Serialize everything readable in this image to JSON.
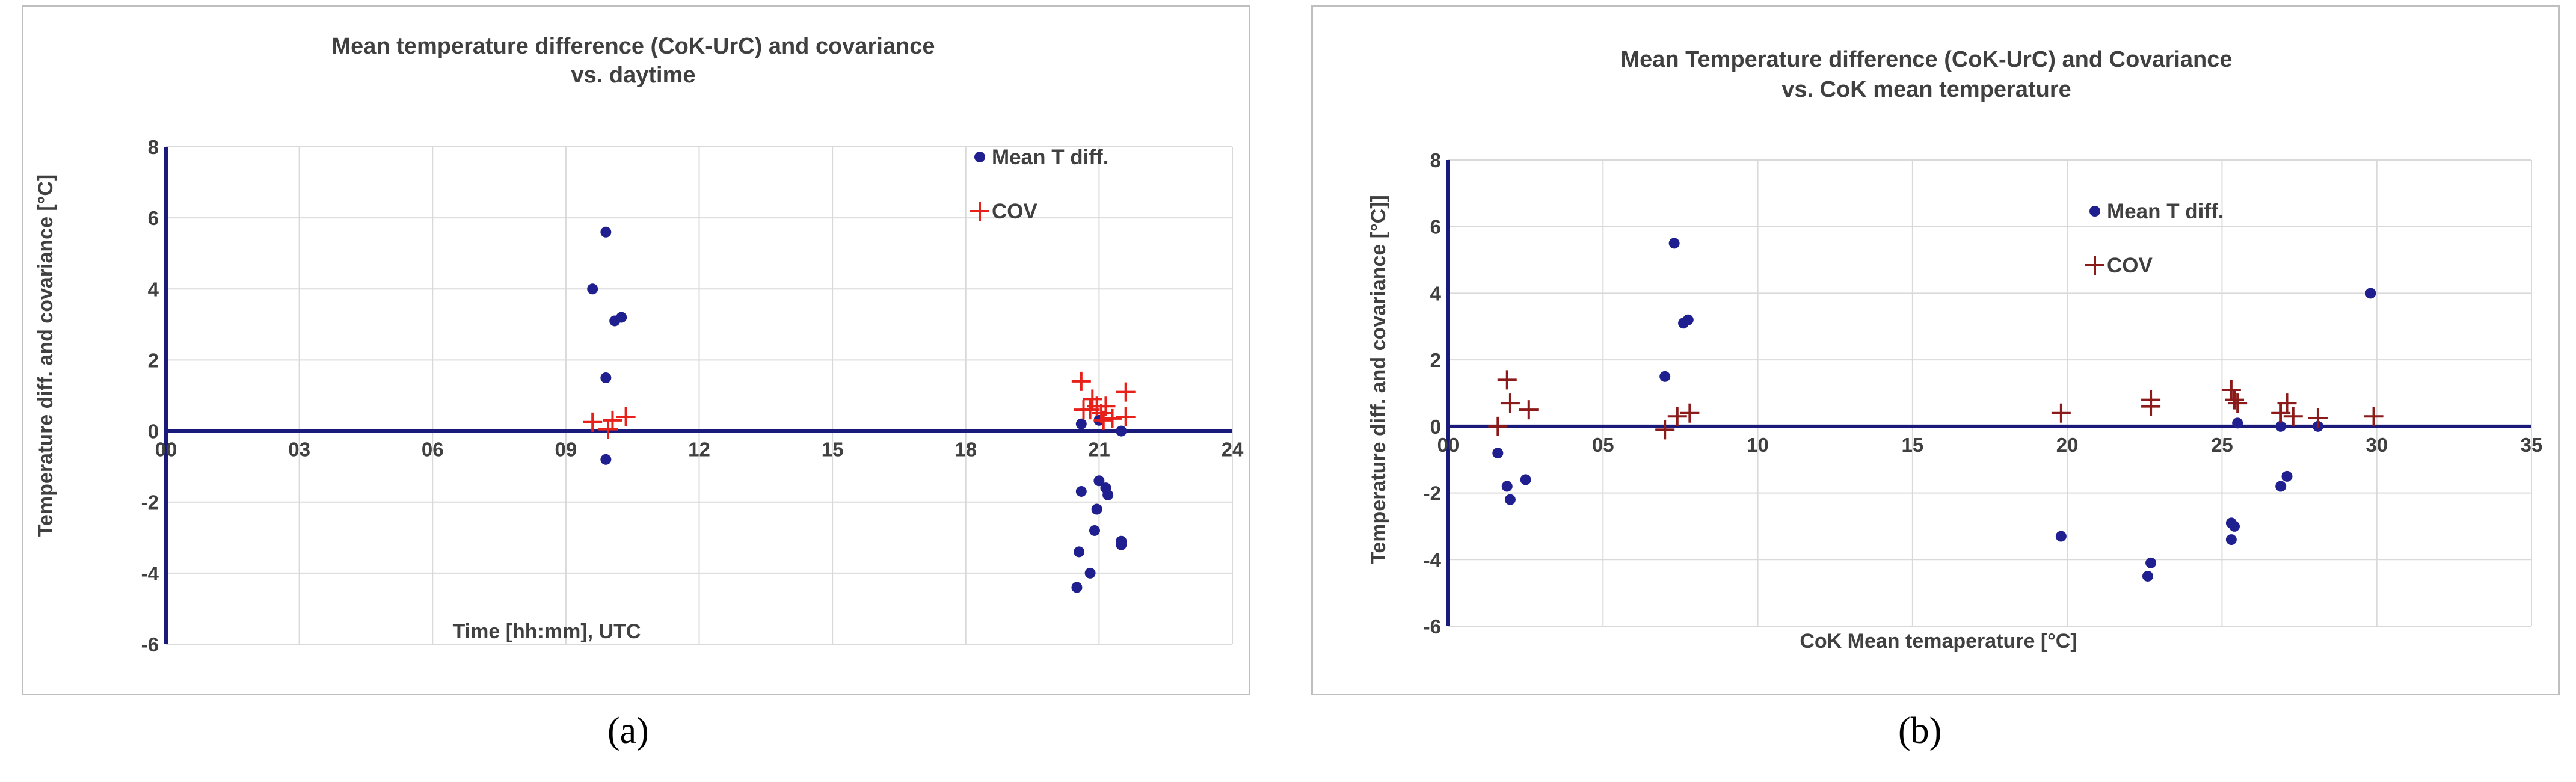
{
  "panel_labels": [
    "(a)",
    "(b)"
  ],
  "chart_data": [
    {
      "type": "scatter",
      "title_lines": [
        "Mean temperature difference (CoK-UrC) and covariance",
        "vs. daytime"
      ],
      "xlabel": "Time [hh:mm], UTC",
      "ylabel": "Temperature diff. and covariance [°C]",
      "xlim": [
        0,
        24
      ],
      "ylim": [
        -6,
        8
      ],
      "xticks": [
        0,
        3,
        6,
        9,
        12,
        15,
        18,
        21,
        24
      ],
      "xtick_labels": [
        "00",
        "03",
        "06",
        "09",
        "12",
        "15",
        "18",
        "21",
        "24"
      ],
      "yticks": [
        -6,
        -4,
        -2,
        0,
        2,
        4,
        6,
        8
      ],
      "ytick_labels": [
        "-6",
        "-4",
        "-2",
        "0",
        "2",
        "4",
        "6",
        "8"
      ],
      "grid": true,
      "legend_position": "top-right",
      "series": [
        {
          "name": "Mean T diff.",
          "marker": "dot",
          "color": "#1f1f8f",
          "points": [
            [
              9.6,
              4.0
            ],
            [
              9.9,
              5.6
            ],
            [
              9.9,
              1.5
            ],
            [
              9.9,
              -0.8
            ],
            [
              10.1,
              3.1
            ],
            [
              10.25,
              3.2
            ],
            [
              20.6,
              0.2
            ],
            [
              20.6,
              -1.7
            ],
            [
              20.55,
              -3.4
            ],
            [
              20.5,
              -4.4
            ],
            [
              20.8,
              -4.0
            ],
            [
              21.0,
              -1.4
            ],
            [
              21.15,
              -1.6
            ],
            [
              21.2,
              -1.8
            ],
            [
              20.95,
              -2.2
            ],
            [
              20.9,
              -2.8
            ],
            [
              21.5,
              -3.1
            ],
            [
              21.5,
              -3.2
            ],
            [
              21.5,
              0.0
            ],
            [
              21.0,
              0.3
            ]
          ]
        },
        {
          "name": "COV",
          "marker": "plus",
          "color": "#e8201a",
          "points": [
            [
              9.6,
              0.25
            ],
            [
              9.95,
              0.05
            ],
            [
              10.05,
              0.3
            ],
            [
              10.35,
              0.4
            ],
            [
              20.6,
              1.4
            ],
            [
              20.65,
              0.6
            ],
            [
              20.8,
              0.6
            ],
            [
              20.85,
              0.9
            ],
            [
              20.95,
              0.7
            ],
            [
              21.05,
              0.5
            ],
            [
              21.15,
              0.7
            ],
            [
              21.1,
              0.3
            ],
            [
              21.3,
              0.35
            ],
            [
              21.6,
              1.1
            ],
            [
              21.6,
              0.4
            ]
          ]
        }
      ]
    },
    {
      "type": "scatter",
      "title_lines": [
        "Mean Temperature difference (CoK-UrC) and Covariance",
        "vs. CoK mean temperature"
      ],
      "xlabel": "CoK Mean temaperature [°C]",
      "ylabel": "Temperature diff. and covariance [°C]]",
      "xlim": [
        0,
        35
      ],
      "ylim": [
        -6,
        8
      ],
      "xticks": [
        0,
        5,
        10,
        15,
        20,
        25,
        30,
        35
      ],
      "xtick_labels": [
        "00",
        "05",
        "10",
        "15",
        "20",
        "25",
        "30",
        "35"
      ],
      "yticks": [
        -6,
        -4,
        -2,
        0,
        2,
        4,
        6,
        8
      ],
      "ytick_labels": [
        "-6",
        "-4",
        "-2",
        "0",
        "2",
        "4",
        "6",
        "8"
      ],
      "grid": true,
      "legend_position": "top-center",
      "series": [
        {
          "name": "Mean T diff.",
          "marker": "dot",
          "color": "#1f1f8f",
          "points": [
            [
              1.6,
              -0.8
            ],
            [
              1.9,
              -1.8
            ],
            [
              2.0,
              -2.2
            ],
            [
              2.5,
              -1.6
            ],
            [
              7.0,
              1.5
            ],
            [
              7.3,
              5.5
            ],
            [
              7.6,
              3.1
            ],
            [
              7.75,
              3.2
            ],
            [
              19.8,
              -3.3
            ],
            [
              22.7,
              -4.1
            ],
            [
              22.6,
              -4.5
            ],
            [
              25.3,
              -2.9
            ],
            [
              25.4,
              -3.0
            ],
            [
              25.3,
              -3.4
            ],
            [
              25.5,
              0.1
            ],
            [
              26.9,
              -1.8
            ],
            [
              27.1,
              -1.5
            ],
            [
              26.9,
              0.0
            ],
            [
              28.1,
              0.0
            ],
            [
              29.8,
              4.0
            ]
          ]
        },
        {
          "name": "COV",
          "marker": "plus",
          "color": "#8b1a1a",
          "points": [
            [
              1.6,
              0.0
            ],
            [
              1.9,
              1.4
            ],
            [
              2.0,
              0.7
            ],
            [
              2.6,
              0.5
            ],
            [
              7.0,
              -0.1
            ],
            [
              7.4,
              0.3
            ],
            [
              7.8,
              0.4
            ],
            [
              19.8,
              0.4
            ],
            [
              22.7,
              0.6
            ],
            [
              22.7,
              0.8
            ],
            [
              25.3,
              1.1
            ],
            [
              25.4,
              0.8
            ],
            [
              25.5,
              0.7
            ],
            [
              26.9,
              0.4
            ],
            [
              27.1,
              0.7
            ],
            [
              27.3,
              0.3
            ],
            [
              28.1,
              0.25
            ],
            [
              29.9,
              0.3
            ]
          ]
        }
      ]
    }
  ]
}
